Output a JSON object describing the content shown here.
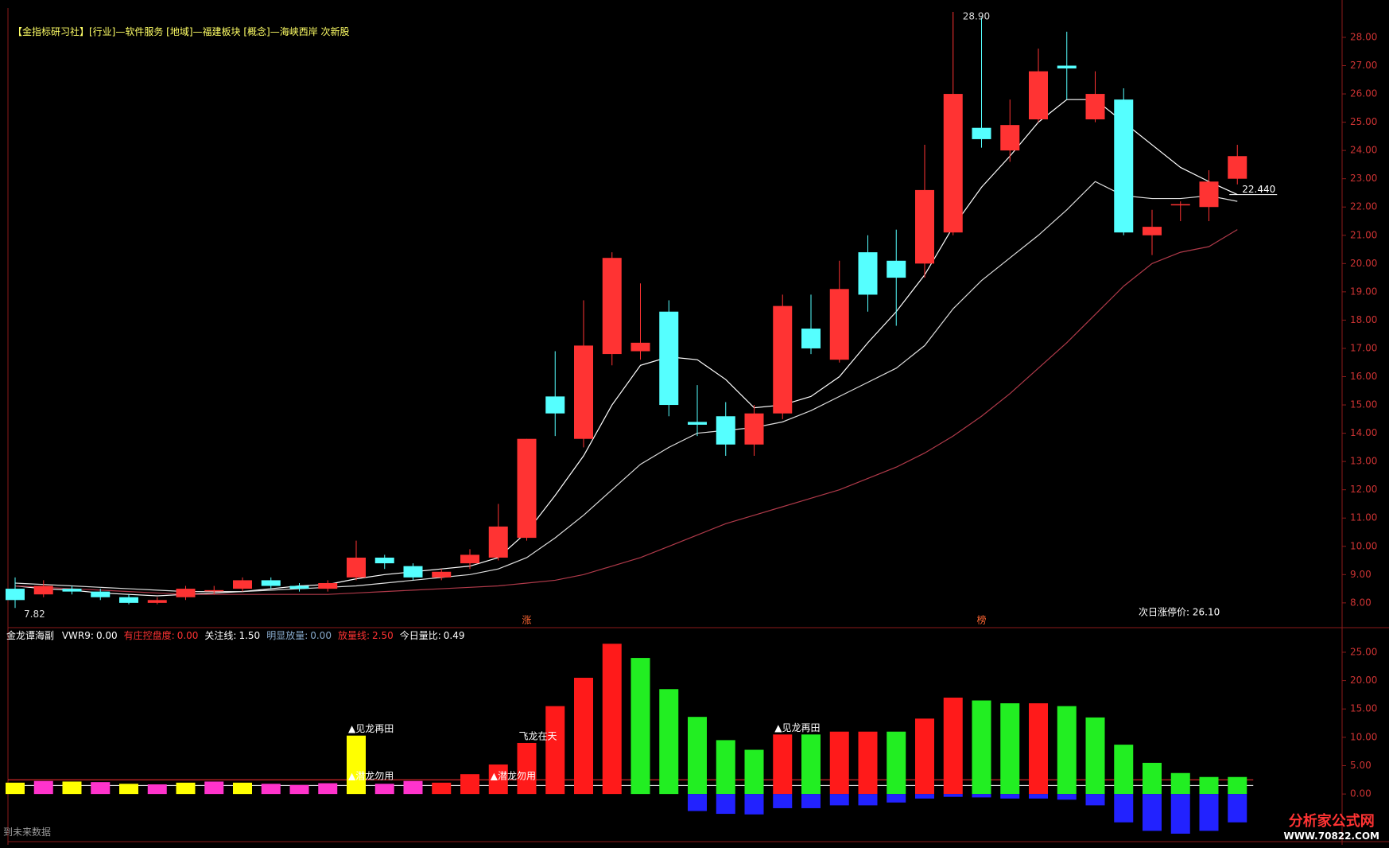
{
  "header": "【金指标研习社】[行业]—软件服务 [地域]—福建板块 [概念]—海峡西岸 次新股",
  "chart_data": [
    {
      "type": "candlestick",
      "up_color": "#ff3333",
      "down_color": "#55ffff",
      "open": [
        8.5,
        8.3,
        8.5,
        8.4,
        8.2,
        8.0,
        8.2,
        8.45,
        8.5,
        8.8,
        8.6,
        8.5,
        8.9,
        9.6,
        9.3,
        8.9,
        9.4,
        9.6,
        10.3,
        15.3,
        13.8,
        16.8,
        16.9,
        18.3,
        14.4,
        14.6,
        13.6,
        14.7,
        17.7,
        16.6,
        20.4,
        20.1,
        20.0,
        21.1,
        24.8,
        24.0,
        25.1,
        27.0,
        25.1,
        25.8,
        21.0,
        22.1,
        22.0,
        23.0
      ],
      "high": [
        8.9,
        8.8,
        8.6,
        8.5,
        8.3,
        8.2,
        8.6,
        8.6,
        8.9,
        8.9,
        8.7,
        8.8,
        10.2,
        9.7,
        9.4,
        9.2,
        9.9,
        11.5,
        13.8,
        16.9,
        18.7,
        20.4,
        19.3,
        18.7,
        15.7,
        15.1,
        15.0,
        18.9,
        18.9,
        20.1,
        21.0,
        21.2,
        24.2,
        28.9,
        28.7,
        25.8,
        27.6,
        28.2,
        26.8,
        26.2,
        21.9,
        22.2,
        23.3,
        24.2
      ],
      "low": [
        7.82,
        8.2,
        8.3,
        8.1,
        7.95,
        7.95,
        8.1,
        8.3,
        8.4,
        8.5,
        8.4,
        8.4,
        8.8,
        9.2,
        8.8,
        8.8,
        9.2,
        9.5,
        10.2,
        13.9,
        13.5,
        16.4,
        16.6,
        14.6,
        13.9,
        13.2,
        13.2,
        14.5,
        16.8,
        16.5,
        18.3,
        17.8,
        19.5,
        21.0,
        24.1,
        23.6,
        25.0,
        25.8,
        25.0,
        21.0,
        20.3,
        21.5,
        21.5,
        22.8
      ],
      "close": [
        8.1,
        8.6,
        8.4,
        8.2,
        8.0,
        8.1,
        8.5,
        8.45,
        8.8,
        8.6,
        8.5,
        8.7,
        9.6,
        9.4,
        8.9,
        9.1,
        9.7,
        10.7,
        13.8,
        14.7,
        17.1,
        20.2,
        17.2,
        15.0,
        14.3,
        13.6,
        14.7,
        18.5,
        17.0,
        19.1,
        18.9,
        19.5,
        22.6,
        26.0,
        24.4,
        24.9,
        26.8,
        26.9,
        26.0,
        21.1,
        21.3,
        22.1,
        22.9,
        23.8
      ],
      "lines": [
        {
          "color": "#ffffff",
          "values": [
            8.6,
            8.5,
            8.45,
            8.35,
            8.3,
            8.25,
            8.3,
            8.35,
            8.4,
            8.5,
            8.6,
            8.65,
            8.85,
            9.0,
            9.1,
            9.2,
            9.3,
            9.6,
            10.5,
            11.8,
            13.2,
            15.0,
            16.4,
            16.7,
            16.6,
            15.9,
            14.9,
            15.0,
            15.3,
            16.0,
            17.2,
            18.3,
            19.6,
            21.3,
            22.7,
            23.8,
            25.0,
            25.8,
            25.8,
            25.0,
            24.2,
            23.4,
            22.9,
            22.44
          ]
        },
        {
          "color": "#dddddd",
          "values": [
            8.7,
            8.65,
            8.6,
            8.55,
            8.5,
            8.45,
            8.4,
            8.4,
            8.4,
            8.45,
            8.5,
            8.55,
            8.6,
            8.7,
            8.8,
            8.9,
            9.0,
            9.2,
            9.6,
            10.3,
            11.1,
            12.0,
            12.9,
            13.5,
            14.0,
            14.1,
            14.2,
            14.4,
            14.8,
            15.3,
            15.8,
            16.3,
            17.1,
            18.4,
            19.4,
            20.2,
            21.0,
            21.9,
            22.9,
            22.4,
            22.3,
            22.3,
            22.4,
            22.2
          ]
        },
        {
          "color": "#b03a4a",
          "values": [
            8.6,
            8.55,
            8.5,
            8.45,
            8.4,
            8.35,
            8.3,
            8.3,
            8.3,
            8.3,
            8.3,
            8.3,
            8.35,
            8.4,
            8.45,
            8.5,
            8.55,
            8.6,
            8.7,
            8.8,
            9.0,
            9.3,
            9.6,
            10.0,
            10.4,
            10.8,
            11.1,
            11.4,
            11.7,
            12.0,
            12.4,
            12.8,
            13.3,
            13.9,
            14.6,
            15.4,
            16.3,
            17.2,
            18.2,
            19.2,
            20.0,
            20.4,
            20.6,
            21.2
          ]
        }
      ],
      "markers": [
        null,
        null,
        null,
        null,
        null,
        null,
        null,
        null,
        null,
        null,
        null,
        null,
        null,
        null,
        null,
        null,
        null,
        null,
        "涨",
        null,
        null,
        null,
        null,
        null,
        null,
        null,
        null,
        null,
        null,
        null,
        null,
        null,
        null,
        null,
        "榜",
        null,
        null,
        null,
        null,
        null,
        null,
        null,
        null,
        null
      ],
      "high_label": {
        "value": 28.9,
        "label": "28.90"
      },
      "low_label": {
        "value": 7.82,
        "label": "7.82"
      },
      "last_label": {
        "value": 22.44,
        "label": "22.440"
      },
      "note": "次日涨停价: 26.10",
      "ylim": [
        7.18,
        29.04
      ],
      "yticks": [
        {
          "value": 8,
          "label": "8.00"
        },
        {
          "value": 9,
          "label": "9.00"
        },
        {
          "value": 10,
          "label": "10.00"
        },
        {
          "value": 11,
          "label": "11.00"
        },
        {
          "value": 12,
          "label": "12.00"
        },
        {
          "value": 13,
          "label": "13.00"
        },
        {
          "value": 14,
          "label": "14.00"
        },
        {
          "value": 15,
          "label": "15.00"
        },
        {
          "value": 16,
          "label": "16.00"
        },
        {
          "value": 17,
          "label": "17.00"
        },
        {
          "value": 18,
          "label": "18.00"
        },
        {
          "value": 19,
          "label": "19.00"
        },
        {
          "value": 20,
          "label": "20.00"
        },
        {
          "value": 21,
          "label": "21.00"
        },
        {
          "value": 22,
          "label": "22.00"
        },
        {
          "value": 23,
          "label": "23.00"
        },
        {
          "value": 24,
          "label": "24.00"
        },
        {
          "value": 25,
          "label": "25.00"
        },
        {
          "value": 26,
          "label": "26.00"
        },
        {
          "value": 27,
          "label": "27.00"
        },
        {
          "value": 28,
          "label": "28.00"
        }
      ]
    },
    {
      "type": "bar",
      "title": "金龙谭海副",
      "indicators": [
        {
          "name": "VWR9:",
          "value": 0,
          "label": "0.00",
          "color": "#ffffff"
        },
        {
          "name": "有庄控盘度:",
          "value": 0,
          "label": "0.00",
          "color": "#ff3333"
        },
        {
          "name": "关注线:",
          "value": 1.5,
          "label": "1.50",
          "color": "#ffffff",
          "ref_line": true
        },
        {
          "name": "明显放量:",
          "value": 0,
          "label": "0.00",
          "color": "#88aacc"
        },
        {
          "name": "放量线:",
          "value": 2.5,
          "label": "2.50",
          "color": "#ff3333",
          "ref_line": true
        },
        {
          "name": "今日量比:",
          "value": 0.49,
          "label": "0.49",
          "color": "#ffffff"
        }
      ],
      "series": [
        {
          "values": [
            2,
            2.3,
            2.2,
            2.1,
            1.8,
            1.7,
            2,
            2.2,
            2,
            1.8,
            1.6,
            1.9,
            10.3,
            1.8,
            2.3,
            2.0,
            3.5,
            5.2,
            9.0,
            15.5,
            20.5,
            26.5,
            24,
            18.5,
            13.6,
            9.5,
            7.8,
            10.5,
            10.5,
            11,
            11,
            11,
            13.3,
            17,
            16.5,
            16,
            16,
            15.5,
            13.5,
            8.7,
            5.5,
            3.7,
            3,
            3
          ],
          "colors": [
            "#ffff00",
            "#ff33cc",
            "#ffff00",
            "#ff33cc",
            "#ffff00",
            "#ff33cc",
            "#ffff00",
            "#ff33cc",
            "#ffff00",
            "#ff33cc",
            "#ff33cc",
            "#ff33cc",
            "#ffff00",
            "#ff33cc",
            "#ff33cc",
            "#ff1a1a",
            "#ff1a1a",
            "#ff1a1a",
            "#ff1a1a",
            "#ff1a1a",
            "#ff1a1a",
            "#ff1a1a",
            "#22ee22",
            "#22ee22",
            "#22ee22",
            "#22ee22",
            "#22ee22",
            "#ff1a1a",
            "#22ee22",
            "#ff1a1a",
            "#ff1a1a",
            "#22ee22",
            "#ff1a1a",
            "#ff1a1a",
            "#22ee22",
            "#22ee22",
            "#ff1a1a",
            "#22ee22",
            "#22ee22",
            "#22ee22",
            "#22ee22",
            "#22ee22",
            "#22ee22",
            "#22ee22"
          ]
        },
        {
          "values": [
            0,
            0,
            0,
            0,
            0,
            0,
            0,
            0,
            0,
            0,
            0,
            0,
            0,
            0,
            0,
            0,
            0,
            0,
            0,
            0,
            0,
            0,
            0,
            0,
            -3,
            -3.5,
            -3.6,
            -2.5,
            -2.5,
            -2,
            -2,
            -1.5,
            -0.8,
            -0.5,
            -0.6,
            -0.8,
            -0.8,
            -1,
            -2,
            -5,
            -6.5,
            -7,
            -6.5,
            -5
          ],
          "color": "#2222ff"
        }
      ],
      "signals_upper": [
        null,
        null,
        null,
        null,
        null,
        null,
        null,
        null,
        null,
        null,
        null,
        null,
        "▲见龙再田",
        null,
        null,
        null,
        null,
        null,
        "飞龙在天",
        null,
        null,
        null,
        null,
        null,
        null,
        null,
        null,
        "▲见龙再田",
        null,
        null,
        null,
        null,
        null,
        null,
        null,
        null,
        null,
        null,
        null,
        null,
        null,
        null,
        null,
        null
      ],
      "signals_lower": [
        null,
        null,
        null,
        null,
        null,
        null,
        null,
        null,
        null,
        null,
        null,
        null,
        "▲潜龙勿用",
        null,
        null,
        null,
        null,
        "▲潜龙勿用",
        null,
        null,
        null,
        null,
        null,
        null,
        null,
        null,
        null,
        null,
        null,
        null,
        null,
        null,
        null,
        null,
        null,
        null,
        null,
        null,
        null,
        null,
        null,
        null,
        null,
        null
      ],
      "ylim": [
        -8.4,
        29.2
      ],
      "yticks": [
        {
          "value": 0,
          "label": "0.00"
        },
        {
          "value": 5,
          "label": "5.00"
        },
        {
          "value": 10,
          "label": "10.00"
        },
        {
          "value": 15,
          "label": "15.00"
        },
        {
          "value": 20,
          "label": "20.00"
        },
        {
          "value": 25,
          "label": "25.00"
        }
      ]
    }
  ],
  "footer": "到未来数据",
  "logo": {
    "name": "分析家公式网",
    "url": "WWW.70822.COM"
  }
}
